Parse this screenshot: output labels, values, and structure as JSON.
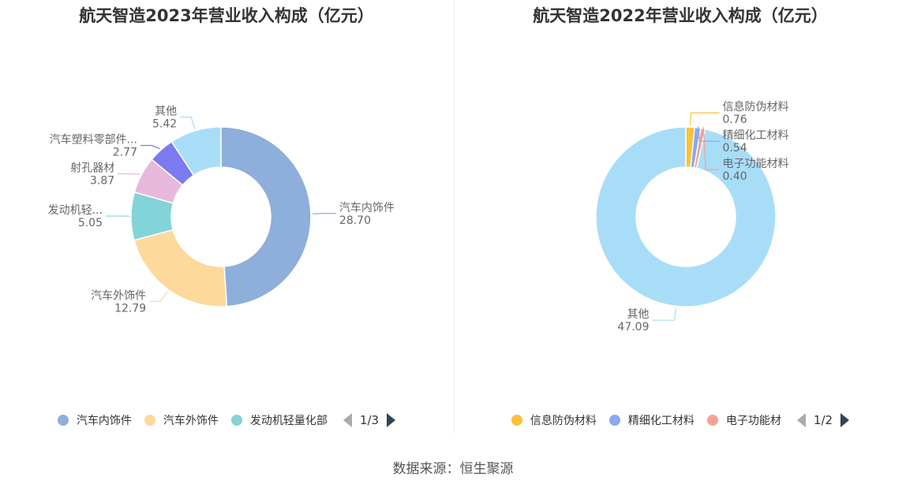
{
  "source": "数据来源：恒生聚源",
  "chart_data": [
    {
      "type": "pie",
      "title": "航天智造2023年营业收入构成（亿元）",
      "donut": true,
      "slices": [
        {
          "name": "汽车内饰件",
          "display_name": "汽车内饰件",
          "value": 28.7,
          "value_label": "28.70",
          "color": "#8eaedb"
        },
        {
          "name": "汽车外饰件",
          "display_name": "汽车外饰件",
          "value": 12.79,
          "value_label": "12.79",
          "color": "#fdd99b"
        },
        {
          "name": "发动机轻量化部",
          "display_name": "发动机轻...",
          "value": 5.05,
          "value_label": "5.05",
          "color": "#82d4d8"
        },
        {
          "name": "射孔器材",
          "display_name": "射孔器材",
          "value": 3.87,
          "value_label": "3.87",
          "color": "#e6b9dc"
        },
        {
          "name": "汽车塑料零部件",
          "display_name": "汽车塑料零部件...",
          "value": 2.77,
          "value_label": "2.77",
          "color": "#7b7af0"
        },
        {
          "name": "其他",
          "display_name": "其他",
          "value": 5.42,
          "value_label": "5.42",
          "color": "#a8ddf8"
        }
      ],
      "legend": {
        "items": [
          {
            "label": "汽车内饰件",
            "color": "#8eaedb"
          },
          {
            "label": "汽车外饰件",
            "color": "#fdd99b"
          },
          {
            "label": "发动机轻量化部",
            "color": "#82d4d8"
          }
        ],
        "page": "1/3",
        "position": "bottom"
      }
    },
    {
      "type": "pie",
      "title": "航天智造2022年营业收入构成（亿元）",
      "donut": true,
      "slices": [
        {
          "name": "信息防伪材料",
          "display_name": "信息防伪材料",
          "value": 0.76,
          "value_label": "0.76",
          "color": "#fbc23b"
        },
        {
          "name": "精细化工材料",
          "display_name": "精细化工材料",
          "value": 0.54,
          "value_label": "0.54",
          "color": "#8aa8f3"
        },
        {
          "name": "电子功能材料",
          "display_name": "电子功能材料",
          "value": 0.4,
          "value_label": "0.40",
          "color": "#f4a299"
        },
        {
          "name": "其他",
          "display_name": "其他",
          "value": 47.09,
          "value_label": "47.09",
          "color": "#a8ddf8"
        }
      ],
      "legend": {
        "items": [
          {
            "label": "信息防伪材料",
            "color": "#fbc23b"
          },
          {
            "label": "精细化工材料",
            "color": "#8aa8f3"
          },
          {
            "label": "电子功能材",
            "color": "#f4a299"
          }
        ],
        "page": "1/2",
        "position": "bottom"
      }
    }
  ]
}
